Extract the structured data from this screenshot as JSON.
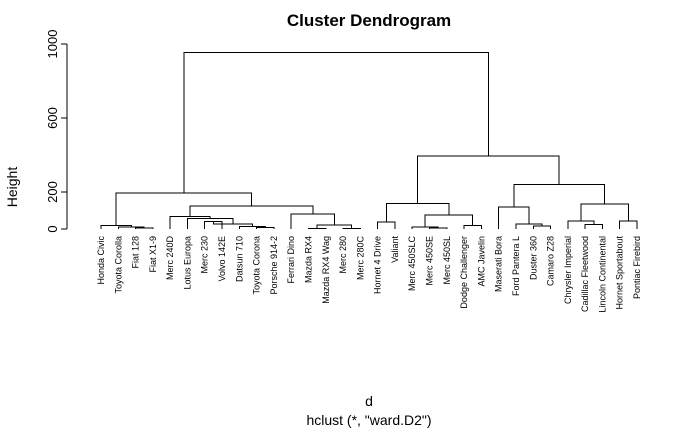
{
  "chart_data": {
    "type": "dendrogram",
    "title": "Cluster Dendrogram",
    "ylabel": "Height",
    "xlabel": "d",
    "subtitle": "hclust (*, \"ward.D2\")",
    "ylim": [
      0,
      1000
    ],
    "yticks": [
      0,
      200,
      600,
      1000
    ],
    "leaves": [
      "Honda Civic",
      "Toyota Corolla",
      "Fiat 128",
      "Fiat X1-9",
      "Merc 240D",
      "Lotus Europa",
      "Merc 230",
      "Volvo 142E",
      "Datsun 710",
      "Toyota Corona",
      "Porsche 914-2",
      "Ferrari Dino",
      "Mazda RX4",
      "Mazda RX4 Wag",
      "Merc 280",
      "Merc 280C",
      "Hornet 4 Drive",
      "Valiant",
      "Merc 450SLC",
      "Merc 450SE",
      "Merc 450SL",
      "Dodge Challenger",
      "AMC Javelin",
      "Maserati Bora",
      "Ford Pantera L",
      "Duster 360",
      "Camaro Z28",
      "Chrysler Imperial",
      "Cadillac Fleetwood",
      "Lincoln Continental",
      "Hornet Sportabout",
      "Pontiac Firebird"
    ],
    "merges": [
      {
        "id": "m1",
        "left": "L:Fiat 128",
        "right": "L:Fiat X1-9",
        "height": 5
      },
      {
        "id": "m2",
        "left": "L:Toyota Corolla",
        "right": "N:m1",
        "height": 10
      },
      {
        "id": "m3",
        "left": "L:Honda Civic",
        "right": "N:m2",
        "height": 18
      },
      {
        "id": "m4",
        "left": "L:Merc 230",
        "right": "L:Volvo 142E",
        "height": 40
      },
      {
        "id": "m5",
        "left": "L:Toyota Corona",
        "right": "L:Porsche 914-2",
        "height": 8
      },
      {
        "id": "m6",
        "left": "L:Datsun 710",
        "right": "N:m5",
        "height": 14
      },
      {
        "id": "m7",
        "left": "N:m4",
        "right": "N:m6",
        "height": 28
      },
      {
        "id": "m8",
        "left": "L:Lotus Europa",
        "right": "N:m7",
        "height": 58
      },
      {
        "id": "m9",
        "left": "L:Merc 240D",
        "right": "N:m8",
        "height": 68
      },
      {
        "id": "m10",
        "left": "L:Mazda RX4",
        "right": "L:Mazda RX4 Wag",
        "height": 2
      },
      {
        "id": "m11",
        "left": "L:Merc 280",
        "right": "L:Merc 280C",
        "height": 2
      },
      {
        "id": "m12",
        "left": "N:m10",
        "right": "N:m11",
        "height": 22
      },
      {
        "id": "m13",
        "left": "L:Ferrari Dino",
        "right": "N:m12",
        "height": 80
      },
      {
        "id": "m14",
        "left": "N:m9",
        "right": "N:m13",
        "height": 125
      },
      {
        "id": "m15",
        "left": "N:m3",
        "right": "N:m14",
        "height": 195
      },
      {
        "id": "m16",
        "left": "L:Hornet 4 Drive",
        "right": "L:Valiant",
        "height": 38
      },
      {
        "id": "m17",
        "left": "L:Merc 450SE",
        "right": "L:Merc 450SL",
        "height": 5
      },
      {
        "id": "m18",
        "left": "L:Merc 450SLC",
        "right": "N:m17",
        "height": 10
      },
      {
        "id": "m19",
        "left": "L:Dodge Challenger",
        "right": "L:AMC Javelin",
        "height": 18
      },
      {
        "id": "m20",
        "left": "N:m18",
        "right": "N:m19",
        "height": 75
      },
      {
        "id": "m21",
        "left": "N:m16",
        "right": "N:m20",
        "height": 138
      },
      {
        "id": "m22",
        "left": "L:Duster 360",
        "right": "L:Camaro Z28",
        "height": 16
      },
      {
        "id": "m23",
        "left": "L:Ford Pantera L",
        "right": "N:m22",
        "height": 28
      },
      {
        "id": "m24",
        "left": "L:Maserati Bora",
        "right": "N:m23",
        "height": 120
      },
      {
        "id": "m25",
        "left": "L:Cadillac Fleetwood",
        "right": "L:Lincoln Continental",
        "height": 25
      },
      {
        "id": "m26",
        "left": "L:Chrysler Imperial",
        "right": "N:m25",
        "height": 42
      },
      {
        "id": "m27",
        "left": "L:Hornet Sportabout",
        "right": "L:Pontiac Firebird",
        "height": 42
      },
      {
        "id": "m28",
        "left": "N:m26",
        "right": "N:m27",
        "height": 135
      },
      {
        "id": "m29",
        "left": "N:m24",
        "right": "N:m28",
        "height": 240
      },
      {
        "id": "m30",
        "left": "N:m21",
        "right": "N:m29",
        "height": 395
      },
      {
        "id": "m31",
        "left": "N:m15",
        "right": "N:m30",
        "height": 955
      }
    ]
  }
}
